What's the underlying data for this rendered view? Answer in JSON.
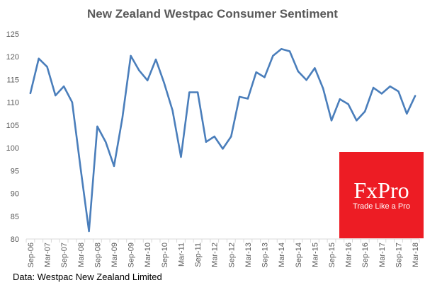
{
  "chart_data": {
    "type": "line",
    "title": "New Zealand Westpac Consumer Sentiment",
    "xlabel": "",
    "ylabel": "",
    "ylim": [
      80,
      125
    ],
    "yticks": [
      80,
      85,
      90,
      95,
      100,
      105,
      110,
      115,
      120,
      125
    ],
    "grid": false,
    "legend": "none",
    "tick_labels": [
      "Sep-06",
      "Mar-07",
      "Sep-07",
      "Mar-08",
      "Sep-08",
      "Mar-09",
      "Sep-09",
      "Mar-10",
      "Sep-10",
      "Mar-11",
      "Sep-11",
      "Mar-12",
      "Sep-12",
      "Mar-13",
      "Sep-13",
      "Mar-14",
      "Sep-14",
      "Mar-15",
      "Sep-15",
      "Mar-16",
      "Sep-16",
      "Mar-17",
      "Sep-17",
      "Mar-18"
    ],
    "categories": [
      "Sep-06",
      "Dec-06",
      "Mar-07",
      "Jun-07",
      "Sep-07",
      "Dec-07",
      "Mar-08",
      "Jun-08",
      "Sep-08",
      "Dec-08",
      "Mar-09",
      "Jun-09",
      "Sep-09",
      "Dec-09",
      "Mar-10",
      "Jun-10",
      "Sep-10",
      "Dec-10",
      "Mar-11",
      "Jun-11",
      "Sep-11",
      "Dec-11",
      "Mar-12",
      "Jun-12",
      "Sep-12",
      "Dec-12",
      "Mar-13",
      "Jun-13",
      "Sep-13",
      "Dec-13",
      "Mar-14",
      "Jun-14",
      "Sep-14",
      "Dec-14",
      "Mar-15",
      "Jun-15",
      "Sep-15",
      "Dec-15",
      "Mar-16",
      "Jun-16",
      "Sep-16",
      "Dec-16",
      "Mar-17",
      "Jun-17",
      "Sep-17",
      "Dec-17",
      "Mar-18"
    ],
    "series": [
      {
        "name": "Westpac Consumer Sentiment",
        "color": "#4a7ebb",
        "values": [
          112,
          119.6,
          117.8,
          111.5,
          113.5,
          110,
          95.5,
          81.7,
          104.7,
          101.3,
          96,
          106.6,
          120.2,
          117,
          114.8,
          119.4,
          114.2,
          108.2,
          98,
          112.2,
          112.2,
          101.3,
          102.5,
          99.8,
          102.5,
          111.2,
          110.8,
          116.6,
          115.5,
          120.2,
          121.7,
          121.2,
          116.8,
          114.9,
          117.5,
          113,
          106,
          110.7,
          109.6,
          106,
          108,
          113.2,
          111.9,
          113.5,
          112.4,
          107.5,
          111.4
        ]
      }
    ]
  },
  "source": "Data: Westpac New Zealand Limited",
  "logo": {
    "wordmark": "FxPro",
    "tagline": "Trade Like a Pro",
    "color": "#ed1c24"
  }
}
